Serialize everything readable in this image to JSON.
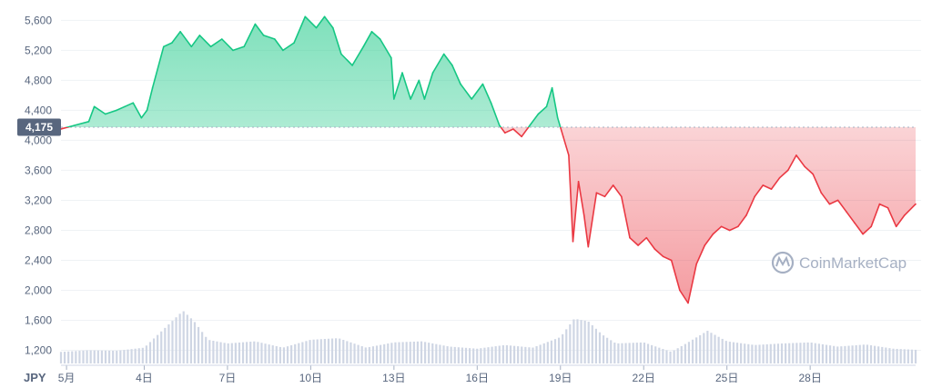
{
  "chart_data": {
    "type": "area",
    "currency_label": "JPY",
    "reference_value": 4175,
    "reference_label": "4,175",
    "ylim": [
      1000,
      5750
    ],
    "y_ticks": [
      {
        "value": 1200,
        "label": "1,200"
      },
      {
        "value": 1600,
        "label": "1,600"
      },
      {
        "value": 2000,
        "label": "2,000"
      },
      {
        "value": 2400,
        "label": "2,400"
      },
      {
        "value": 2800,
        "label": "2,800"
      },
      {
        "value": 3200,
        "label": "3,200"
      },
      {
        "value": 3600,
        "label": "3,600"
      },
      {
        "value": 4000,
        "label": "4,000"
      },
      {
        "value": 4400,
        "label": "4,400"
      },
      {
        "value": 4800,
        "label": "4,800"
      },
      {
        "value": 5200,
        "label": "5,200"
      },
      {
        "value": 5600,
        "label": "5,600"
      }
    ],
    "xlim": [
      1.0,
      31.8
    ],
    "x_ticks": [
      {
        "day": 1.2,
        "label": "5月"
      },
      {
        "day": 4.0,
        "label": "4日"
      },
      {
        "day": 7.0,
        "label": "7日"
      },
      {
        "day": 10.0,
        "label": "10日"
      },
      {
        "day": 13.0,
        "label": "13日"
      },
      {
        "day": 16.0,
        "label": "16日"
      },
      {
        "day": 19.0,
        "label": "19日"
      },
      {
        "day": 22.0,
        "label": "22日"
      },
      {
        "day": 25.0,
        "label": "25日"
      },
      {
        "day": 28.0,
        "label": "28日"
      }
    ],
    "series": [
      {
        "values": [
          {
            "x": 1.0,
            "y": 4150
          },
          {
            "x": 1.5,
            "y": 4200
          },
          {
            "x": 2.0,
            "y": 4250
          },
          {
            "x": 2.2,
            "y": 4450
          },
          {
            "x": 2.6,
            "y": 4350
          },
          {
            "x": 3.0,
            "y": 4400
          },
          {
            "x": 3.3,
            "y": 4450
          },
          {
            "x": 3.6,
            "y": 4500
          },
          {
            "x": 3.9,
            "y": 4300
          },
          {
            "x": 4.1,
            "y": 4400
          },
          {
            "x": 4.3,
            "y": 4700
          },
          {
            "x": 4.7,
            "y": 5250
          },
          {
            "x": 5.0,
            "y": 5300
          },
          {
            "x": 5.3,
            "y": 5450
          },
          {
            "x": 5.7,
            "y": 5250
          },
          {
            "x": 6.0,
            "y": 5400
          },
          {
            "x": 6.4,
            "y": 5250
          },
          {
            "x": 6.8,
            "y": 5350
          },
          {
            "x": 7.2,
            "y": 5200
          },
          {
            "x": 7.6,
            "y": 5250
          },
          {
            "x": 8.0,
            "y": 5550
          },
          {
            "x": 8.3,
            "y": 5400
          },
          {
            "x": 8.7,
            "y": 5350
          },
          {
            "x": 9.0,
            "y": 5200
          },
          {
            "x": 9.4,
            "y": 5300
          },
          {
            "x": 9.8,
            "y": 5650
          },
          {
            "x": 10.2,
            "y": 5500
          },
          {
            "x": 10.5,
            "y": 5650
          },
          {
            "x": 10.8,
            "y": 5500
          },
          {
            "x": 11.1,
            "y": 5150
          },
          {
            "x": 11.5,
            "y": 5000
          },
          {
            "x": 11.9,
            "y": 5250
          },
          {
            "x": 12.2,
            "y": 5450
          },
          {
            "x": 12.5,
            "y": 5350
          },
          {
            "x": 12.9,
            "y": 5100
          },
          {
            "x": 13.0,
            "y": 4550
          },
          {
            "x": 13.3,
            "y": 4900
          },
          {
            "x": 13.6,
            "y": 4550
          },
          {
            "x": 13.9,
            "y": 4800
          },
          {
            "x": 14.1,
            "y": 4550
          },
          {
            "x": 14.4,
            "y": 4900
          },
          {
            "x": 14.8,
            "y": 5150
          },
          {
            "x": 15.1,
            "y": 5000
          },
          {
            "x": 15.4,
            "y": 4750
          },
          {
            "x": 15.8,
            "y": 4550
          },
          {
            "x": 16.2,
            "y": 4750
          },
          {
            "x": 16.5,
            "y": 4500
          },
          {
            "x": 16.8,
            "y": 4200
          },
          {
            "x": 17.0,
            "y": 4100
          },
          {
            "x": 17.3,
            "y": 4150
          },
          {
            "x": 17.6,
            "y": 4050
          },
          {
            "x": 17.9,
            "y": 4200
          },
          {
            "x": 18.2,
            "y": 4350
          },
          {
            "x": 18.5,
            "y": 4450
          },
          {
            "x": 18.7,
            "y": 4700
          },
          {
            "x": 18.9,
            "y": 4300
          },
          {
            "x": 19.1,
            "y": 4050
          },
          {
            "x": 19.3,
            "y": 3800
          },
          {
            "x": 19.45,
            "y": 2650
          },
          {
            "x": 19.65,
            "y": 3450
          },
          {
            "x": 19.85,
            "y": 3000
          },
          {
            "x": 20.0,
            "y": 2580
          },
          {
            "x": 20.3,
            "y": 3300
          },
          {
            "x": 20.6,
            "y": 3250
          },
          {
            "x": 20.9,
            "y": 3400
          },
          {
            "x": 21.2,
            "y": 3250
          },
          {
            "x": 21.5,
            "y": 2700
          },
          {
            "x": 21.8,
            "y": 2600
          },
          {
            "x": 22.1,
            "y": 2700
          },
          {
            "x": 22.4,
            "y": 2550
          },
          {
            "x": 22.7,
            "y": 2450
          },
          {
            "x": 23.0,
            "y": 2400
          },
          {
            "x": 23.3,
            "y": 2000
          },
          {
            "x": 23.6,
            "y": 1830
          },
          {
            "x": 23.9,
            "y": 2350
          },
          {
            "x": 24.2,
            "y": 2600
          },
          {
            "x": 24.5,
            "y": 2750
          },
          {
            "x": 24.8,
            "y": 2850
          },
          {
            "x": 25.1,
            "y": 2800
          },
          {
            "x": 25.4,
            "y": 2850
          },
          {
            "x": 25.7,
            "y": 3000
          },
          {
            "x": 26.0,
            "y": 3250
          },
          {
            "x": 26.3,
            "y": 3400
          },
          {
            "x": 26.6,
            "y": 3350
          },
          {
            "x": 26.9,
            "y": 3500
          },
          {
            "x": 27.2,
            "y": 3600
          },
          {
            "x": 27.5,
            "y": 3800
          },
          {
            "x": 27.8,
            "y": 3650
          },
          {
            "x": 28.1,
            "y": 3550
          },
          {
            "x": 28.4,
            "y": 3300
          },
          {
            "x": 28.7,
            "y": 3150
          },
          {
            "x": 29.0,
            "y": 3200
          },
          {
            "x": 29.3,
            "y": 3050
          },
          {
            "x": 29.6,
            "y": 2900
          },
          {
            "x": 29.9,
            "y": 2750
          },
          {
            "x": 30.2,
            "y": 2850
          },
          {
            "x": 30.5,
            "y": 3150
          },
          {
            "x": 30.8,
            "y": 3100
          },
          {
            "x": 31.1,
            "y": 2850
          },
          {
            "x": 31.4,
            "y": 3000
          },
          {
            "x": 31.8,
            "y": 3150
          }
        ]
      }
    ],
    "volume": [
      {
        "x": 1.0,
        "v": 0.22
      },
      {
        "x": 2.0,
        "v": 0.25
      },
      {
        "x": 3.0,
        "v": 0.24
      },
      {
        "x": 4.0,
        "v": 0.3
      },
      {
        "x": 4.5,
        "v": 0.55
      },
      {
        "x": 5.0,
        "v": 0.8
      },
      {
        "x": 5.4,
        "v": 1.0
      },
      {
        "x": 5.8,
        "v": 0.8
      },
      {
        "x": 6.3,
        "v": 0.45
      },
      {
        "x": 7.0,
        "v": 0.38
      },
      {
        "x": 8.0,
        "v": 0.42
      },
      {
        "x": 9.0,
        "v": 0.3
      },
      {
        "x": 10.0,
        "v": 0.45
      },
      {
        "x": 11.0,
        "v": 0.48
      },
      {
        "x": 12.0,
        "v": 0.3
      },
      {
        "x": 13.0,
        "v": 0.4
      },
      {
        "x": 14.0,
        "v": 0.42
      },
      {
        "x": 15.0,
        "v": 0.32
      },
      {
        "x": 16.0,
        "v": 0.28
      },
      {
        "x": 17.0,
        "v": 0.35
      },
      {
        "x": 18.0,
        "v": 0.3
      },
      {
        "x": 19.0,
        "v": 0.5
      },
      {
        "x": 19.5,
        "v": 0.85
      },
      {
        "x": 20.0,
        "v": 0.8
      },
      {
        "x": 20.5,
        "v": 0.55
      },
      {
        "x": 21.0,
        "v": 0.38
      },
      {
        "x": 22.0,
        "v": 0.4
      },
      {
        "x": 23.0,
        "v": 0.22
      },
      {
        "x": 23.6,
        "v": 0.4
      },
      {
        "x": 24.3,
        "v": 0.62
      },
      {
        "x": 25.0,
        "v": 0.42
      },
      {
        "x": 26.0,
        "v": 0.35
      },
      {
        "x": 27.0,
        "v": 0.38
      },
      {
        "x": 28.0,
        "v": 0.4
      },
      {
        "x": 29.0,
        "v": 0.32
      },
      {
        "x": 30.0,
        "v": 0.36
      },
      {
        "x": 31.0,
        "v": 0.28
      },
      {
        "x": 31.8,
        "v": 0.26
      }
    ],
    "colors": {
      "up": "#16c784",
      "down": "#ea3943",
      "grid": "#eff2f5",
      "volume": "#cfd6e4",
      "reference_badge": "#58667e"
    },
    "grid": true,
    "watermark": "CoinMarketCap"
  }
}
